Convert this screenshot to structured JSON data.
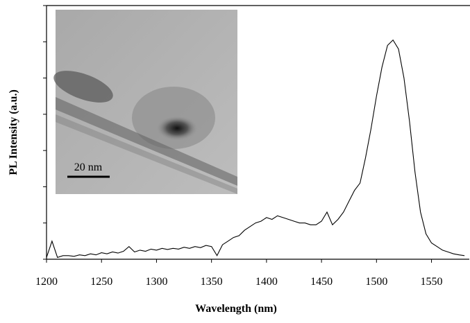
{
  "chart_data": {
    "type": "line",
    "xlabel": "Wavelength (nm)",
    "ylabel": "PL Intensity (a.u.)",
    "x": [
      1200,
      1205,
      1210,
      1215,
      1220,
      1225,
      1230,
      1235,
      1240,
      1245,
      1250,
      1255,
      1260,
      1265,
      1270,
      1275,
      1280,
      1285,
      1290,
      1295,
      1300,
      1305,
      1310,
      1315,
      1320,
      1325,
      1330,
      1335,
      1340,
      1345,
      1350,
      1355,
      1360,
      1365,
      1370,
      1375,
      1380,
      1385,
      1390,
      1395,
      1400,
      1405,
      1410,
      1415,
      1420,
      1425,
      1430,
      1435,
      1440,
      1445,
      1450,
      1455,
      1460,
      1465,
      1470,
      1475,
      1480,
      1485,
      1490,
      1495,
      1500,
      1505,
      1510,
      1515,
      1520,
      1525,
      1530,
      1535,
      1540,
      1545,
      1550,
      1555,
      1560,
      1565,
      1570,
      1575,
      1580
    ],
    "values": [
      0.05,
      0.5,
      0.05,
      0.1,
      0.1,
      0.08,
      0.12,
      0.1,
      0.15,
      0.12,
      0.18,
      0.15,
      0.2,
      0.17,
      0.22,
      0.35,
      0.2,
      0.25,
      0.22,
      0.28,
      0.25,
      0.3,
      0.27,
      0.3,
      0.28,
      0.33,
      0.3,
      0.35,
      0.32,
      0.38,
      0.35,
      0.1,
      0.4,
      0.5,
      0.6,
      0.65,
      0.8,
      0.9,
      1.0,
      1.05,
      1.15,
      1.1,
      1.2,
      1.15,
      1.1,
      1.05,
      1.0,
      1.0,
      0.95,
      0.95,
      1.05,
      1.3,
      0.95,
      1.1,
      1.3,
      1.6,
      1.9,
      2.1,
      2.8,
      3.6,
      4.5,
      5.3,
      5.9,
      6.05,
      5.8,
      5.0,
      3.8,
      2.4,
      1.3,
      0.7,
      0.45,
      0.35,
      0.25,
      0.2,
      0.15,
      0.12,
      0.1
    ],
    "color": "#000000",
    "xlim": [
      1200,
      1585
    ],
    "xticks": [
      1200,
      1250,
      1300,
      1350,
      1400,
      1450,
      1500,
      1550
    ],
    "ylim": [
      0,
      7
    ],
    "yticks": [
      0,
      1,
      2,
      3,
      4,
      5,
      6,
      7
    ],
    "show_ytick_labels": false,
    "inset_scale_bar": "20 nm"
  }
}
